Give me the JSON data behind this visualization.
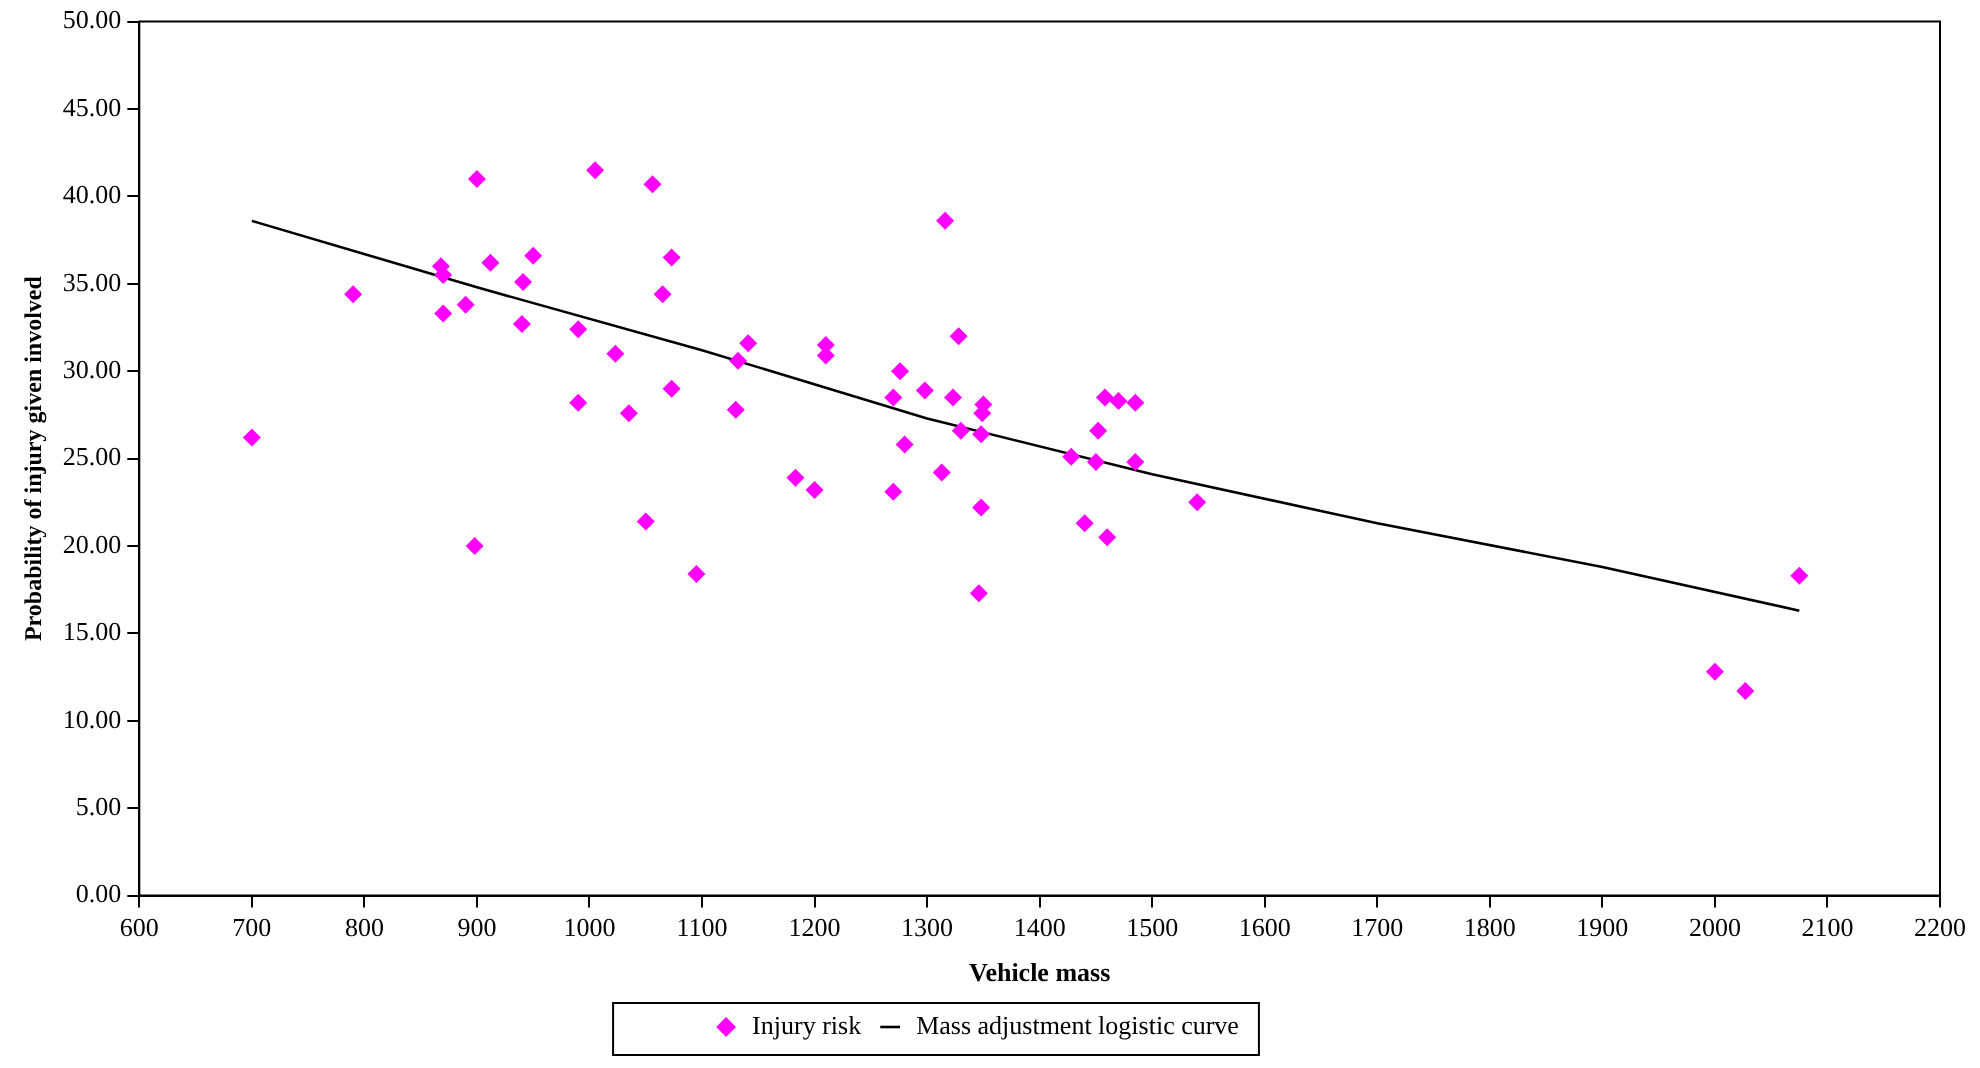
{
  "chart_data": {
    "type": "scatter",
    "xlabel": "Vehicle mass",
    "ylabel": "Probability of injury given involved",
    "xlim": [
      600,
      2200
    ],
    "xticks": [
      600,
      700,
      800,
      900,
      1000,
      1100,
      1200,
      1300,
      1400,
      1500,
      1600,
      1700,
      1800,
      1900,
      2000,
      2100,
      2200
    ],
    "ylim": [
      0,
      50
    ],
    "yticks": [
      {
        "value": 0,
        "label": "0.00"
      },
      {
        "value": 5,
        "label": "5.00"
      },
      {
        "value": 10,
        "label": "10.00"
      },
      {
        "value": 15,
        "label": "15.00"
      },
      {
        "value": 20,
        "label": "20.00"
      },
      {
        "value": 25,
        "label": "25.00"
      },
      {
        "value": 30,
        "label": "30.00"
      },
      {
        "value": 35,
        "label": "35.00"
      },
      {
        "value": 40,
        "label": "40.00"
      },
      {
        "value": 45,
        "label": "45.00"
      },
      {
        "value": 50,
        "label": "50.00"
      }
    ],
    "grid": false,
    "legend": "bottom",
    "series": [
      {
        "name": "Injury risk",
        "type": "scatter",
        "marker": "diamond",
        "color": "#ff00ff",
        "x": [
          700,
          790,
          868,
          870,
          870,
          890,
          900,
          898,
          912,
          940,
          941,
          950,
          990,
          990,
          1005,
          1023,
          1035,
          1050,
          1056,
          1065,
          1073,
          1073,
          1095,
          1130,
          1132,
          1141,
          1183,
          1200,
          1210,
          1210,
          1270,
          1270,
          1276,
          1280,
          1298,
          1313,
          1316,
          1323,
          1328,
          1330,
          1346,
          1348,
          1348,
          1349,
          1350,
          1428,
          1440,
          1450,
          1452,
          1458,
          1460,
          1470,
          1485,
          1485,
          1540,
          2000,
          2027,
          2075
        ],
        "values": [
          26.2,
          34.4,
          36.0,
          35.5,
          33.3,
          33.8,
          41.0,
          20.0,
          36.2,
          32.7,
          35.1,
          36.6,
          32.4,
          28.2,
          41.5,
          31.0,
          27.6,
          21.4,
          40.7,
          34.4,
          36.5,
          29.0,
          18.4,
          27.8,
          30.6,
          31.6,
          23.9,
          23.2,
          31.5,
          30.9,
          28.5,
          23.1,
          30.0,
          25.8,
          28.9,
          24.2,
          38.6,
          28.5,
          32.0,
          26.6,
          17.3,
          22.2,
          26.4,
          27.6,
          28.1,
          25.1,
          21.3,
          24.8,
          26.6,
          28.5,
          20.5,
          28.3,
          28.2,
          24.8,
          22.5,
          12.8,
          11.7,
          18.3
        ]
      },
      {
        "name": "Mass adjustment logistic curve",
        "type": "line",
        "marker": "none",
        "line_style": "solid",
        "color": "#000000",
        "x": [
          700,
          900,
          1100,
          1300,
          1500,
          1700,
          1900,
          2075
        ],
        "values": [
          38.6,
          34.8,
          31.2,
          27.3,
          24.1,
          21.3,
          18.8,
          16.3
        ]
      }
    ]
  }
}
